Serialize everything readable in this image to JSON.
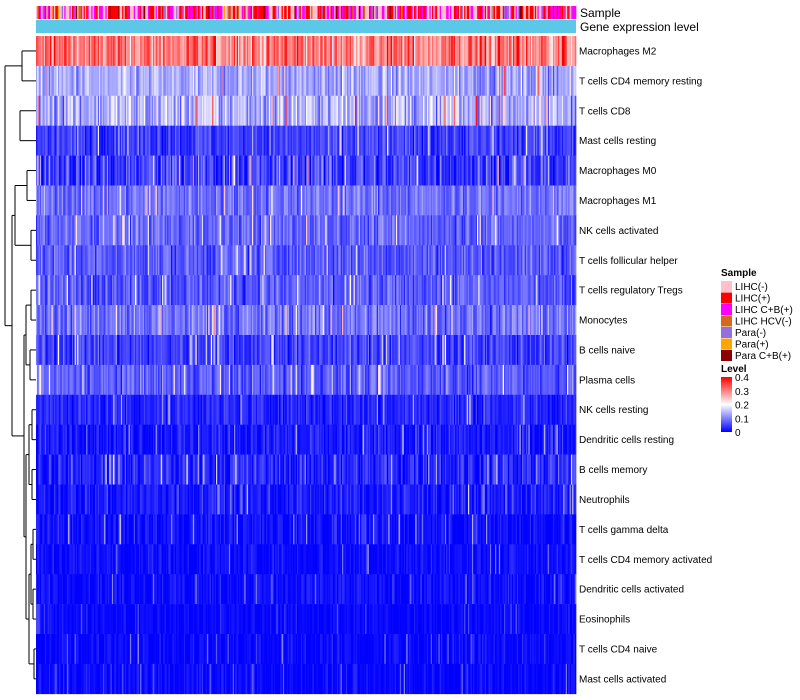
{
  "chart_data": {
    "type": "heatmap",
    "n_samples": 420,
    "row_annotations": [
      {
        "key": "sample",
        "label": "Sample"
      },
      {
        "key": "level",
        "label": "Gene expression level"
      }
    ],
    "rows": [
      {
        "label": "Macrophages M2",
        "mean": 0.3,
        "spread": 0.09
      },
      {
        "label": "T cells CD4 memory resting",
        "mean": 0.13,
        "spread": 0.06
      },
      {
        "label": "T cells CD8",
        "mean": 0.14,
        "spread": 0.08
      },
      {
        "label": "Mast cells resting",
        "mean": 0.05,
        "spread": 0.05
      },
      {
        "label": "Macrophages M0",
        "mean": 0.05,
        "spread": 0.08
      },
      {
        "label": "Macrophages M1",
        "mean": 0.09,
        "spread": 0.05
      },
      {
        "label": "NK cells activated",
        "mean": 0.08,
        "spread": 0.05
      },
      {
        "label": "T cells follicular helper",
        "mean": 0.07,
        "spread": 0.05
      },
      {
        "label": "T cells regulatory  Tregs",
        "mean": 0.07,
        "spread": 0.05
      },
      {
        "label": "Monocytes",
        "mean": 0.09,
        "spread": 0.06
      },
      {
        "label": "B cells naive",
        "mean": 0.05,
        "spread": 0.05
      },
      {
        "label": "Plasma cells",
        "mean": 0.07,
        "spread": 0.05
      },
      {
        "label": "NK cells resting",
        "mean": 0.03,
        "spread": 0.04
      },
      {
        "label": "Dendritic cells resting",
        "mean": 0.02,
        "spread": 0.04
      },
      {
        "label": "B cells memory",
        "mean": 0.03,
        "spread": 0.05
      },
      {
        "label": "Neutrophils",
        "mean": 0.02,
        "spread": 0.04
      },
      {
        "label": "T cells gamma delta",
        "mean": 0.01,
        "spread": 0.04
      },
      {
        "label": "T cells CD4 memory activated",
        "mean": 0.01,
        "spread": 0.03
      },
      {
        "label": "Dendritic cells activated",
        "mean": 0.01,
        "spread": 0.03
      },
      {
        "label": "Eosinophils",
        "mean": 0.005,
        "spread": 0.02
      },
      {
        "label": "T cells CD4 naive",
        "mean": 0.005,
        "spread": 0.03
      },
      {
        "label": "Mast cells activated",
        "mean": 0.005,
        "spread": 0.03
      }
    ],
    "sample_legend": {
      "title": "Sample",
      "entries": [
        {
          "label": "LIHC(-)",
          "color": "#FFC0CB"
        },
        {
          "label": "LIHC(+)",
          "color": "#FF0000"
        },
        {
          "label": "LIHC C+B(+)",
          "color": "#FF00FF"
        },
        {
          "label": "LIHC HCV(-)",
          "color": "#D2691E"
        },
        {
          "label": "Para(-)",
          "color": "#9370DB"
        },
        {
          "label": "Para(+)",
          "color": "#FFA500"
        },
        {
          "label": "Para C+B(+)",
          "color": "#8B0000"
        }
      ]
    },
    "level_legend": {
      "title": "Level",
      "range": [
        0,
        0.4
      ],
      "ticks": [
        "0.4",
        "0.3",
        "0.2",
        "0.1",
        "0"
      ],
      "colors": [
        "#0000FF",
        "#FFFFFF",
        "#FF0000"
      ]
    },
    "level_annotation_color": "#5BC8E8"
  }
}
